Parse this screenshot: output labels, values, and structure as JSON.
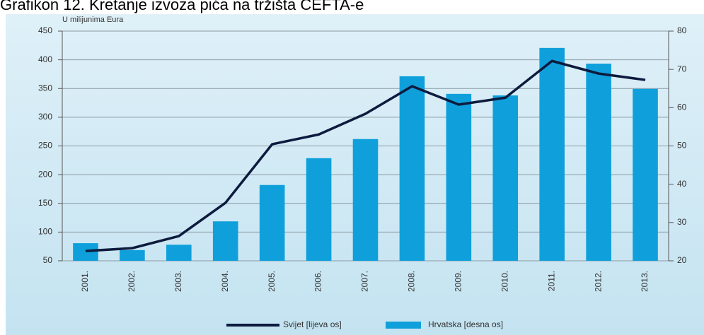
{
  "chart_data": {
    "type": "bar_line",
    "title": "Grafikon 12. Kretanje izvoza pića na tržišta CEFTA-e",
    "y_label": "U milijunima Eura",
    "categories": [
      "2001.",
      "2002.",
      "2003.",
      "2004.",
      "2005.",
      "2006.",
      "2007.",
      "2008.",
      "2009.",
      "2010.",
      "2011.",
      "2012.",
      "2013."
    ],
    "series": [
      {
        "name": "Svijet [lijeva os]",
        "type": "line",
        "color": "#0d1b3e",
        "axis": "y",
        "values": [
          67,
          72,
          93,
          151,
          253,
          270,
          306,
          354,
          322,
          334,
          398,
          376,
          365
        ]
      },
      {
        "name": "Hrvatska [desna os]",
        "type": "bar",
        "color": "#0fa0dc",
        "axis": "y2",
        "values": [
          24.6,
          22.8,
          24.2,
          30.3,
          39.8,
          46.8,
          51.8,
          68.2,
          63.6,
          63.2,
          75.6,
          71.5,
          64.9
        ]
      }
    ],
    "ylim": [
      50,
      450
    ],
    "yticks": [
      50,
      100,
      150,
      200,
      250,
      300,
      350,
      400,
      450
    ],
    "y2lim": [
      20,
      80
    ],
    "y2ticks": [
      20,
      30,
      40,
      50,
      60,
      70,
      80
    ],
    "grid": true
  }
}
